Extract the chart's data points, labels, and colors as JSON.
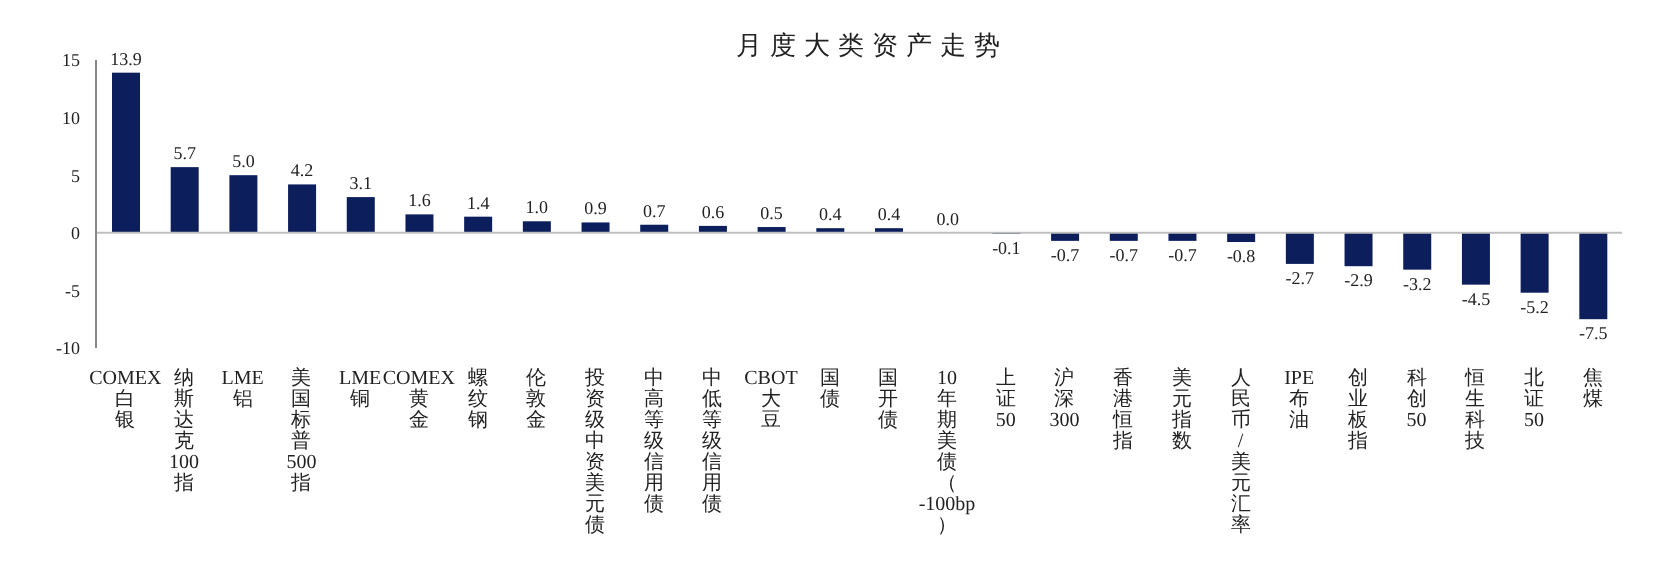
{
  "chart_data": {
    "type": "bar",
    "title": "月度大类资产走势",
    "categories": [
      "COMEX白银",
      "纳斯达克100指",
      "LME铝",
      "美国标普500指",
      "LME铜",
      "COMEX黄金",
      "螺纹钢",
      "伦敦金",
      "投资级中资美元债",
      "中高等级信用债",
      "中低等级信用债",
      "CBOT大豆",
      "国债",
      "国开债",
      "10年期美债（-100bp）",
      "上证50",
      "沪深300",
      "香港恒指",
      "美元指数",
      "人民币/美元汇率",
      "IPE布油",
      "创业板指",
      "科创50",
      "恒生科技",
      "北证50",
      "焦煤"
    ],
    "values": [
      13.9,
      5.7,
      5.0,
      4.2,
      3.1,
      1.6,
      1.4,
      1.0,
      0.9,
      0.7,
      0.6,
      0.5,
      0.4,
      0.4,
      0.0,
      -0.1,
      -0.7,
      -0.7,
      -0.7,
      -0.8,
      -2.7,
      -2.9,
      -3.2,
      -4.5,
      -5.2,
      -7.5
    ],
    "value_labels": [
      "13.9",
      "5.7",
      "5.0",
      "4.2",
      "3.1",
      "1.6",
      "1.4",
      "1.0",
      "0.9",
      "0.7",
      "0.6",
      "0.5",
      "0.4",
      "0.4",
      "0.0",
      "-0.1",
      "-0.7",
      "-0.7",
      "-0.7",
      "-0.8",
      "-2.7",
      "-2.9",
      "-3.2",
      "-4.5",
      "-5.2",
      "-7.5"
    ],
    "color": "#0c1f5c",
    "ylim": [
      -10,
      15
    ],
    "yticks": [
      -10,
      -5,
      0,
      5,
      10,
      15
    ],
    "grid": false,
    "ref_lines": [
      {
        "axis": "y",
        "value": 0,
        "color": "#bfbfbf"
      }
    ]
  }
}
